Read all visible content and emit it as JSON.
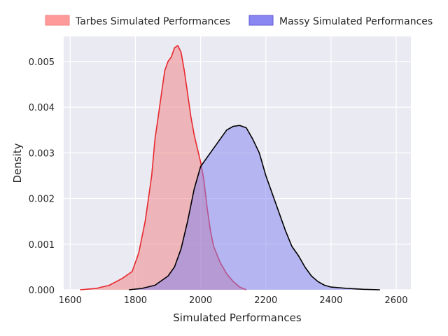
{
  "chart_data": {
    "type": "area",
    "title": "",
    "xlabel": "Simulated Performances",
    "ylabel": "Density",
    "xlim": [
      1580,
      2645
    ],
    "ylim": [
      0,
      0.00555
    ],
    "grid": true,
    "legend_position": "top",
    "x_ticks": [
      1600,
      1800,
      2000,
      2200,
      2400,
      2600
    ],
    "x_tick_labels": [
      "1600",
      "1800",
      "2000",
      "2200",
      "2400",
      "2600"
    ],
    "y_ticks": [
      0,
      0.001,
      0.002,
      0.003,
      0.004,
      0.005
    ],
    "y_tick_labels": [
      "0.000",
      "0.001",
      "0.002",
      "0.003",
      "0.004",
      "0.005"
    ],
    "series": [
      {
        "name": "Tarbes Simulated Performances",
        "fill_color": "#f08080",
        "line_color": "#e8282e",
        "points": [
          [
            1630,
            0.0
          ],
          [
            1680,
            3e-05
          ],
          [
            1720,
            0.0001
          ],
          [
            1760,
            0.00025
          ],
          [
            1790,
            0.0004
          ],
          [
            1810,
            0.0008
          ],
          [
            1830,
            0.0015
          ],
          [
            1850,
            0.0025
          ],
          [
            1860,
            0.0033
          ],
          [
            1870,
            0.0038
          ],
          [
            1880,
            0.0043
          ],
          [
            1890,
            0.0048
          ],
          [
            1900,
            0.005
          ],
          [
            1910,
            0.0051
          ],
          [
            1920,
            0.0053
          ],
          [
            1930,
            0.00535
          ],
          [
            1940,
            0.0052
          ],
          [
            1950,
            0.0048
          ],
          [
            1960,
            0.0043
          ],
          [
            1970,
            0.0038
          ],
          [
            1980,
            0.0034
          ],
          [
            1990,
            0.0031
          ],
          [
            2000,
            0.0028
          ],
          [
            2010,
            0.0024
          ],
          [
            2020,
            0.0018
          ],
          [
            2030,
            0.0013
          ],
          [
            2040,
            0.00095
          ],
          [
            2060,
            0.0006
          ],
          [
            2080,
            0.00035
          ],
          [
            2100,
            0.00018
          ],
          [
            2120,
            6e-05
          ],
          [
            2140,
            0.0
          ]
        ]
      },
      {
        "name": "Massy Simulated Performances",
        "fill_color": "#8080f0",
        "line_color": "#000000",
        "points": [
          [
            1780,
            0.0
          ],
          [
            1820,
            3e-05
          ],
          [
            1860,
            0.0001
          ],
          [
            1900,
            0.0003
          ],
          [
            1920,
            0.0005
          ],
          [
            1940,
            0.0009
          ],
          [
            1960,
            0.0015
          ],
          [
            1980,
            0.0022
          ],
          [
            2000,
            0.0027
          ],
          [
            2020,
            0.0029
          ],
          [
            2040,
            0.0031
          ],
          [
            2060,
            0.0033
          ],
          [
            2080,
            0.0035
          ],
          [
            2100,
            0.00358
          ],
          [
            2120,
            0.0036
          ],
          [
            2140,
            0.00355
          ],
          [
            2160,
            0.0033
          ],
          [
            2180,
            0.003
          ],
          [
            2200,
            0.0025
          ],
          [
            2220,
            0.0021
          ],
          [
            2240,
            0.0017
          ],
          [
            2260,
            0.0013
          ],
          [
            2280,
            0.00095
          ],
          [
            2300,
            0.00075
          ],
          [
            2320,
            0.0005
          ],
          [
            2340,
            0.0003
          ],
          [
            2360,
            0.00018
          ],
          [
            2380,
            0.0001
          ],
          [
            2400,
            6e-05
          ],
          [
            2450,
            3e-05
          ],
          [
            2500,
            1e-05
          ],
          [
            2550,
            0.0
          ]
        ]
      }
    ]
  }
}
